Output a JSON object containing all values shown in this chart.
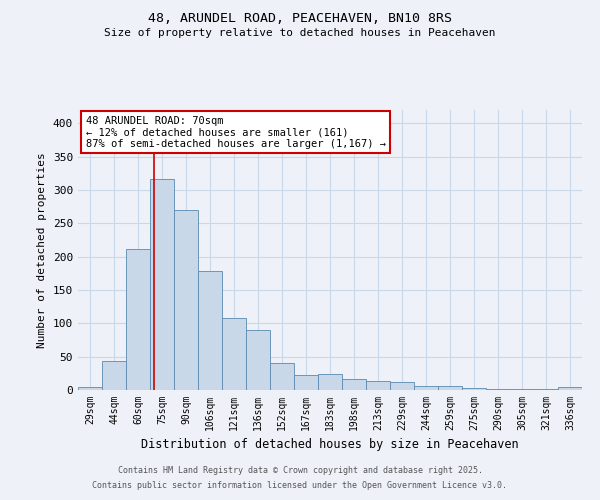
{
  "title1": "48, ARUNDEL ROAD, PEACEHAVEN, BN10 8RS",
  "title2": "Size of property relative to detached houses in Peacehaven",
  "xlabel": "Distribution of detached houses by size in Peacehaven",
  "ylabel": "Number of detached properties",
  "bin_labels": [
    "29sqm",
    "44sqm",
    "60sqm",
    "75sqm",
    "90sqm",
    "106sqm",
    "121sqm",
    "136sqm",
    "152sqm",
    "167sqm",
    "183sqm",
    "198sqm",
    "213sqm",
    "229sqm",
    "244sqm",
    "259sqm",
    "275sqm",
    "290sqm",
    "305sqm",
    "321sqm",
    "336sqm"
  ],
  "bar_values": [
    5,
    44,
    212,
    316,
    270,
    178,
    108,
    90,
    40,
    23,
    24,
    17,
    14,
    12,
    6,
    6,
    3,
    2,
    1,
    1,
    4
  ],
  "bar_color": "#c8d8e8",
  "bar_edge_color": "#5a8ab0",
  "grid_color": "#c8d8e8",
  "background_color": "#eef2f8",
  "red_line_x": 2.667,
  "annotation_line1": "48 ARUNDEL ROAD: 70sqm",
  "annotation_line2": "← 12% of detached houses are smaller (161)",
  "annotation_line3": "87% of semi-detached houses are larger (1,167) →",
  "annotation_box_color": "#ffffff",
  "annotation_box_edge": "#cc0000",
  "annotation_text_color": "#000000",
  "footer1": "Contains HM Land Registry data © Crown copyright and database right 2025.",
  "footer2": "Contains public sector information licensed under the Open Government Licence v3.0.",
  "ylim": [
    0,
    420
  ],
  "yticks": [
    0,
    50,
    100,
    150,
    200,
    250,
    300,
    350,
    400
  ]
}
